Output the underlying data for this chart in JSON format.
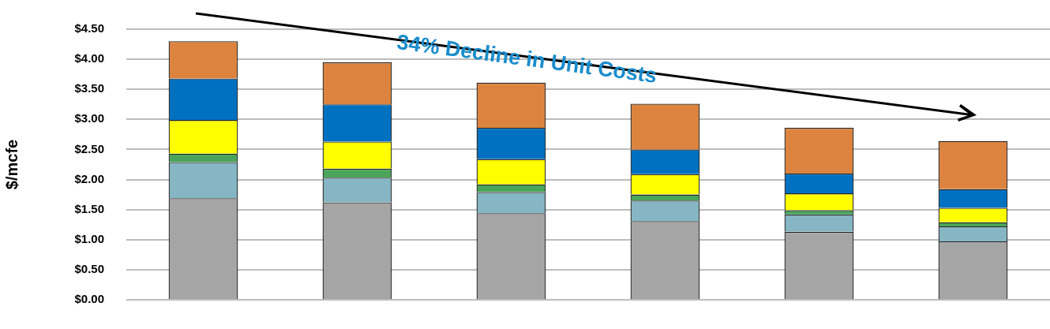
{
  "chart_data": {
    "type": "bar",
    "stacked": true,
    "ylabel": "$/mcfe",
    "categories": [
      null,
      null,
      null,
      null,
      null,
      null
    ],
    "series": [
      {
        "color": "#a5a5a5",
        "values": [
          1.69,
          1.62,
          1.44,
          1.31,
          1.13,
          0.97
        ]
      },
      {
        "color": "#86b5c3",
        "values": [
          0.6,
          0.41,
          0.35,
          0.34,
          0.29,
          0.25
        ]
      },
      {
        "color": "#4aa55a",
        "values": [
          0.14,
          0.15,
          0.13,
          0.1,
          0.07,
          0.07
        ]
      },
      {
        "color": "#ffff00",
        "values": [
          0.56,
          0.45,
          0.42,
          0.34,
          0.28,
          0.24
        ]
      },
      {
        "color": "#0070c0",
        "values": [
          0.69,
          0.62,
          0.52,
          0.41,
          0.33,
          0.31
        ]
      },
      {
        "color": "#dc843f",
        "values": [
          0.62,
          0.7,
          0.75,
          0.76,
          0.76,
          0.8
        ]
      }
    ],
    "ylim": [
      0,
      4.5
    ],
    "yticks": [
      {
        "value": 0,
        "label": "$0.00"
      },
      {
        "value": 0.5,
        "label": "$0.50"
      },
      {
        "value": 1,
        "label": "$1.00"
      },
      {
        "value": 1.5,
        "label": "$1.50"
      },
      {
        "value": 2,
        "label": "$2.00"
      },
      {
        "value": 2.5,
        "label": "$2.50"
      },
      {
        "value": 3,
        "label": "$3.00"
      },
      {
        "value": 3.5,
        "label": "$3.50"
      },
      {
        "value": 4,
        "label": "$4.00"
      },
      {
        "value": 4.5,
        "label": "$4.50"
      }
    ],
    "grid": "y",
    "legend": false,
    "tick_labels": "y",
    "annotations": [
      "34% Decline in Unit Costs"
    ]
  }
}
